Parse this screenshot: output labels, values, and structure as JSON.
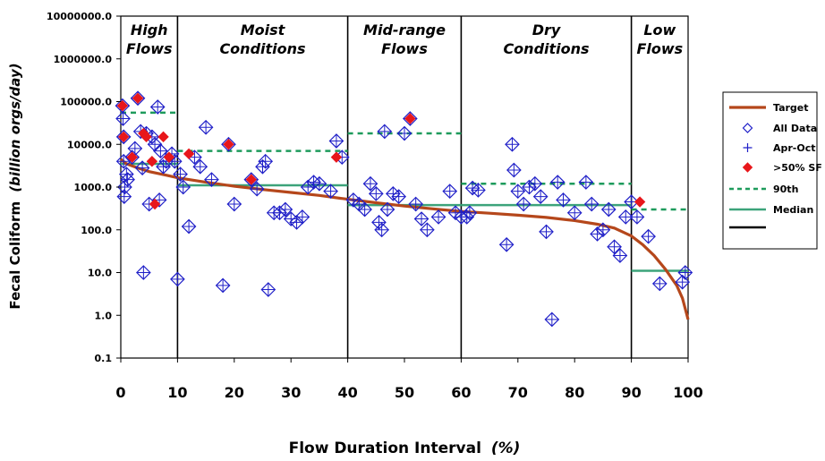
{
  "chart_data": {
    "type": "scatter",
    "xlabel": "Flow Duration Interval",
    "xlabel_unit": "(%)",
    "ylabel": "Fecal Coliform",
    "ylabel_unit": "(billion orgs/day)",
    "xlim": [
      0,
      100
    ],
    "ylim": [
      0.1,
      10000000
    ],
    "yscale": "log",
    "x_ticks": [
      "0",
      "10",
      "20",
      "30",
      "40",
      "50",
      "60",
      "70",
      "80",
      "90",
      "100"
    ],
    "y_ticks": [
      "0.1",
      "1.0",
      "10.0",
      "100.0",
      "1000.0",
      "10000.0",
      "100000.0",
      "1000000.0",
      "10000000.0"
    ],
    "zone_dividers": [
      10,
      40,
      60,
      90
    ],
    "zones": [
      {
        "line1": "High",
        "line2": "Flows",
        "x_from": 0,
        "x_to": 10
      },
      {
        "line1": "Moist",
        "line2": "Conditions",
        "x_from": 10,
        "x_to": 40
      },
      {
        "line1": "Mid-range",
        "line2": "Flows",
        "x_from": 40,
        "x_to": 60
      },
      {
        "line1": "Dry",
        "line2": "Conditions",
        "x_from": 60,
        "x_to": 90
      },
      {
        "line1": "Low",
        "line2": "Flows",
        "x_from": 90,
        "x_to": 100
      }
    ],
    "legend": {
      "position": "right",
      "entries": [
        {
          "label": "Target",
          "marker": "line",
          "color": "#B5471B"
        },
        {
          "label": "All Data",
          "marker": "open-diamond",
          "color": "#1F1FC8"
        },
        {
          "label": "Apr-Oct",
          "marker": "plus",
          "color": "#1F1FC8"
        },
        {
          "label": ">50% SF",
          "marker": "filled-diamond",
          "color": "#E8171B"
        },
        {
          "label": "90th",
          "marker": "dashed-line",
          "color": "#1E9B5C"
        },
        {
          "label": "Median",
          "marker": "line",
          "color": "#3CA37A"
        },
        {
          "label": "",
          "marker": "line",
          "color": "#000000"
        }
      ]
    },
    "series": [
      {
        "name": "Target",
        "type": "line",
        "color": "#B5471B",
        "points": [
          [
            0,
            4500
          ],
          [
            1,
            3500
          ],
          [
            3,
            2800
          ],
          [
            5,
            2300
          ],
          [
            8,
            1900
          ],
          [
            10,
            1650
          ],
          [
            15,
            1300
          ],
          [
            20,
            1050
          ],
          [
            25,
            880
          ],
          [
            30,
            750
          ],
          [
            35,
            640
          ],
          [
            40,
            520
          ],
          [
            45,
            430
          ],
          [
            50,
            360
          ],
          [
            55,
            310
          ],
          [
            60,
            270
          ],
          [
            65,
            245
          ],
          [
            70,
            220
          ],
          [
            75,
            195
          ],
          [
            80,
            165
          ],
          [
            84,
            135
          ],
          [
            87,
            110
          ],
          [
            90,
            72
          ],
          [
            92,
            45
          ],
          [
            94,
            25
          ],
          [
            96,
            12
          ],
          [
            98,
            5
          ],
          [
            99,
            2.5
          ],
          [
            100,
            0.8
          ]
        ]
      },
      {
        "name": "All Data",
        "type": "scatter",
        "marker": "open-diamond",
        "color": "#1F1FC8",
        "points": [
          [
            0.3,
            80000
          ],
          [
            0.4,
            40000
          ],
          [
            0.5,
            15000
          ],
          [
            0.5,
            4000
          ],
          [
            0.6,
            600
          ],
          [
            0.7,
            1000
          ],
          [
            1,
            2000
          ],
          [
            1.2,
            1500
          ],
          [
            2,
            5000
          ],
          [
            2.5,
            8000
          ],
          [
            3,
            120000
          ],
          [
            3.5,
            20000
          ],
          [
            3.8,
            2800
          ],
          [
            4,
            10
          ],
          [
            4.5,
            18000
          ],
          [
            5,
            400
          ],
          [
            5.5,
            15000
          ],
          [
            6,
            10000
          ],
          [
            6.5,
            75000
          ],
          [
            6.8,
            500
          ],
          [
            7,
            7000
          ],
          [
            7.5,
            3000
          ],
          [
            8,
            4000
          ],
          [
            9,
            6000
          ],
          [
            9.5,
            4000
          ],
          [
            10,
            7
          ],
          [
            10.5,
            2000
          ],
          [
            11,
            1000
          ],
          [
            12,
            120
          ],
          [
            13,
            5000
          ],
          [
            14,
            3000
          ],
          [
            15,
            25000
          ],
          [
            16,
            1500
          ],
          [
            18,
            5
          ],
          [
            19,
            10000
          ],
          [
            20,
            400
          ],
          [
            23,
            1500
          ],
          [
            24,
            900
          ],
          [
            25,
            3000
          ],
          [
            25.5,
            4000
          ],
          [
            26,
            4
          ],
          [
            27,
            250
          ],
          [
            28,
            250
          ],
          [
            29,
            300
          ],
          [
            30,
            180
          ],
          [
            31,
            150
          ],
          [
            32,
            200
          ],
          [
            33,
            1000
          ],
          [
            34,
            1300
          ],
          [
            35,
            1200
          ],
          [
            37,
            800
          ],
          [
            38,
            12000
          ],
          [
            39,
            5000
          ],
          [
            41,
            500
          ],
          [
            42,
            400
          ],
          [
            43,
            300
          ],
          [
            44,
            1200
          ],
          [
            45,
            700
          ],
          [
            45.5,
            150
          ],
          [
            46,
            100
          ],
          [
            46.5,
            20000
          ],
          [
            47,
            300
          ],
          [
            48,
            700
          ],
          [
            49,
            600
          ],
          [
            50,
            18000
          ],
          [
            51,
            40000
          ],
          [
            52,
            400
          ],
          [
            53,
            180
          ],
          [
            54,
            100
          ],
          [
            56,
            200
          ],
          [
            58,
            800
          ],
          [
            59,
            250
          ],
          [
            60,
            200
          ],
          [
            61,
            200
          ],
          [
            61.5,
            250
          ],
          [
            62,
            950
          ],
          [
            63,
            850
          ],
          [
            68,
            45
          ],
          [
            69,
            10000
          ],
          [
            69.3,
            2500
          ],
          [
            70,
            800
          ],
          [
            71,
            400
          ],
          [
            72,
            1000
          ],
          [
            73,
            1200
          ],
          [
            74,
            600
          ],
          [
            75,
            90
          ],
          [
            76,
            0.8
          ],
          [
            77,
            1300
          ],
          [
            78,
            500
          ],
          [
            80,
            250
          ],
          [
            82,
            1300
          ],
          [
            83,
            400
          ],
          [
            84,
            80
          ],
          [
            85,
            100
          ],
          [
            86,
            300
          ],
          [
            87,
            40
          ],
          [
            88,
            25
          ],
          [
            89,
            200
          ],
          [
            90,
            450
          ],
          [
            91,
            200
          ],
          [
            93,
            70
          ],
          [
            95,
            5.5
          ],
          [
            99,
            6
          ],
          [
            99.5,
            10
          ]
        ]
      },
      {
        "name": ">50% SF",
        "type": "scatter",
        "marker": "filled-diamond",
        "color": "#E8171B",
        "points": [
          [
            0.3,
            80000
          ],
          [
            0.5,
            15000
          ],
          [
            2,
            5000
          ],
          [
            3,
            120000
          ],
          [
            4,
            18000
          ],
          [
            4.5,
            15000
          ],
          [
            5.5,
            4000
          ],
          [
            6,
            400
          ],
          [
            7.5,
            15000
          ],
          [
            8.5,
            5000
          ],
          [
            12,
            6000
          ],
          [
            19,
            10000
          ],
          [
            23,
            1500
          ],
          [
            38,
            5000
          ],
          [
            51,
            40000
          ],
          [
            91.5,
            450
          ]
        ]
      },
      {
        "name": "90th",
        "type": "step",
        "style": "dashed",
        "color": "#1E9B5C",
        "segments": [
          [
            0,
            10,
            55000
          ],
          [
            10,
            40,
            7000
          ],
          [
            40,
            60,
            18000
          ],
          [
            60,
            90,
            1200
          ],
          [
            90,
            100,
            300
          ]
        ]
      },
      {
        "name": "Median",
        "type": "step",
        "style": "solid",
        "color": "#3CA37A",
        "segments": [
          [
            0,
            10,
            3500
          ],
          [
            10,
            40,
            1100
          ],
          [
            40,
            60,
            380
          ],
          [
            60,
            90,
            380
          ],
          [
            90,
            100,
            11
          ]
        ]
      }
    ]
  }
}
